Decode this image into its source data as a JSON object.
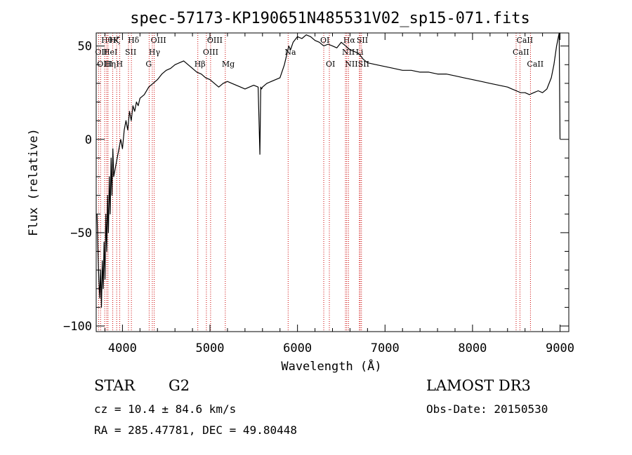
{
  "chart_data": {
    "type": "line",
    "title": "spec-57173-KP190651N485531V02_sp15-071.fits",
    "xlabel": "Wavelength (Å)",
    "ylabel": "Flux (relative)",
    "xlim": [
      3700,
      9100
    ],
    "ylim": [
      -103,
      57
    ],
    "x_ticks": [
      4000,
      5000,
      6000,
      7000,
      8000,
      9000
    ],
    "x_tick_labels": [
      "4000",
      "5000",
      "6000",
      "7000",
      "8000",
      "9000"
    ],
    "y_ticks": [
      -100,
      -50,
      0,
      50
    ],
    "y_tick_labels": [
      "−100",
      "−50",
      "0",
      "50"
    ],
    "series": [
      {
        "name": "spectrum",
        "color": "#000000",
        "x": [
          3710,
          3720,
          3730,
          3740,
          3750,
          3760,
          3770,
          3780,
          3790,
          3800,
          3810,
          3820,
          3830,
          3840,
          3850,
          3860,
          3870,
          3880,
          3890,
          3900,
          3920,
          3940,
          3960,
          3980,
          4000,
          4020,
          4040,
          4060,
          4080,
          4100,
          4120,
          4140,
          4160,
          4180,
          4200,
          4250,
          4300,
          4350,
          4400,
          4450,
          4500,
          4550,
          4600,
          4650,
          4700,
          4750,
          4800,
          4850,
          4900,
          4950,
          5000,
          5050,
          5100,
          5150,
          5200,
          5250,
          5300,
          5350,
          5400,
          5450,
          5500,
          5550,
          5570,
          5580,
          5590,
          5600,
          5650,
          5700,
          5750,
          5800,
          5850,
          5900,
          5920,
          5950,
          6000,
          6050,
          6100,
          6150,
          6200,
          6250,
          6300,
          6350,
          6400,
          6450,
          6500,
          6550,
          6600,
          6650,
          6700,
          6750,
          6800,
          6900,
          7000,
          7100,
          7200,
          7300,
          7400,
          7500,
          7600,
          7700,
          7800,
          7900,
          8000,
          8100,
          8200,
          8300,
          8400,
          8450,
          8500,
          8550,
          8600,
          8650,
          8700,
          8750,
          8800,
          8850,
          8900,
          8930,
          8960,
          8990,
          9000
        ],
        "y": [
          -40,
          -60,
          -75,
          -85,
          -70,
          -90,
          -65,
          -80,
          -55,
          -75,
          -40,
          -60,
          -30,
          -50,
          -20,
          -40,
          -10,
          -30,
          -5,
          -20,
          -15,
          -10,
          -5,
          0,
          -5,
          5,
          10,
          5,
          15,
          10,
          18,
          15,
          20,
          18,
          22,
          24,
          28,
          30,
          32,
          35,
          37,
          38,
          40,
          41,
          42,
          40,
          38,
          36,
          35,
          33,
          32,
          30,
          28,
          30,
          31,
          30,
          29,
          28,
          27,
          28,
          29,
          28,
          -8,
          28,
          27,
          28,
          30,
          31,
          32,
          33,
          40,
          50,
          48,
          52,
          55,
          54,
          56,
          55,
          53,
          52,
          50,
          51,
          50,
          49,
          52,
          50,
          48,
          47,
          46,
          43,
          41,
          40,
          39,
          38,
          37,
          37,
          36,
          36,
          35,
          35,
          34,
          33,
          32,
          31,
          30,
          29,
          28,
          27,
          26,
          25,
          25,
          24,
          25,
          26,
          25,
          27,
          33,
          40,
          50,
          57,
          0
        ]
      }
    ],
    "line_markers": [
      {
        "label": "Hθ",
        "x": 3797,
        "row": 0
      },
      {
        "label": "OII",
        "x": 3727,
        "row": 1
      },
      {
        "label": "OIII",
        "x": 3750,
        "row": 2
      },
      {
        "label": "Hζ",
        "x": 3889,
        "row": 0
      },
      {
        "label": "HeI",
        "x": 3820,
        "row": 1
      },
      {
        "label": "Hη",
        "x": 3835,
        "row": 2
      },
      {
        "label": "K",
        "x": 3934,
        "row": 0
      },
      {
        "label": "SII",
        "x": 4069,
        "row": 1
      },
      {
        "label": "H",
        "x": 3969,
        "row": 2
      },
      {
        "label": "Hδ",
        "x": 4102,
        "row": 0
      },
      {
        "label": "OIII",
        "x": 4363,
        "row": 0
      },
      {
        "label": "Hγ",
        "x": 4341,
        "row": 1
      },
      {
        "label": "G",
        "x": 4305,
        "row": 2
      },
      {
        "label": "OIII",
        "x": 5007,
        "row": 0
      },
      {
        "label": "OIII",
        "x": 4959,
        "row": 1
      },
      {
        "label": "Hβ",
        "x": 4861,
        "row": 2
      },
      {
        "label": "Mg",
        "x": 5175,
        "row": 2
      },
      {
        "label": "Na",
        "x": 5893,
        "row": 1
      },
      {
        "label": "OI",
        "x": 6300,
        "row": 0
      },
      {
        "label": "OI",
        "x": 6364,
        "row": 2
      },
      {
        "label": "Hα",
        "x": 6563,
        "row": 0
      },
      {
        "label": "NII",
        "x": 6548,
        "row": 1
      },
      {
        "label": "NII",
        "x": 6583,
        "row": 2
      },
      {
        "label": "SII",
        "x": 6716,
        "row": 0
      },
      {
        "label": "Li",
        "x": 6707,
        "row": 1
      },
      {
        "label": "SII",
        "x": 6731,
        "row": 2
      },
      {
        "label": "CaII",
        "x": 8542,
        "row": 0
      },
      {
        "label": "CaII",
        "x": 8498,
        "row": 1
      },
      {
        "label": "CaII",
        "x": 8662,
        "row": 2
      }
    ]
  },
  "info": {
    "class_label": "STAR",
    "subclass": "G2",
    "survey": "LAMOST DR3",
    "cz_text": "cz = 10.4 ± 84.6 km/s",
    "obs_date_text": "Obs-Date: 20150530",
    "radec_text": "RA = 285.47781, DEC =  49.80448"
  }
}
